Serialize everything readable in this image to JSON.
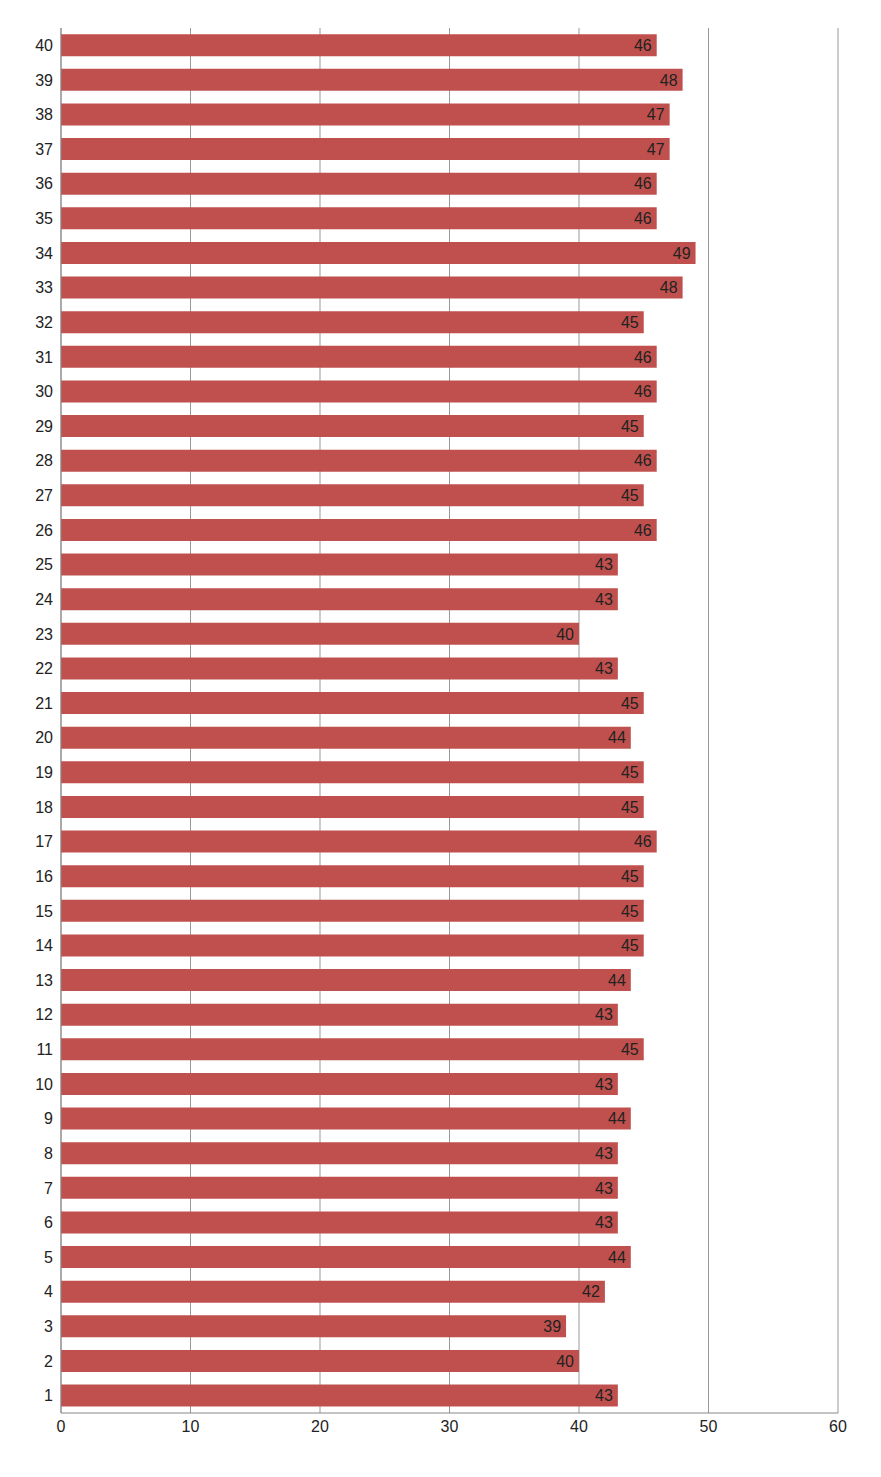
{
  "chart_data": {
    "type": "bar",
    "orientation": "horizontal",
    "categories": [
      "1",
      "2",
      "3",
      "4",
      "5",
      "6",
      "7",
      "8",
      "9",
      "10",
      "11",
      "12",
      "13",
      "14",
      "15",
      "16",
      "17",
      "18",
      "19",
      "20",
      "21",
      "22",
      "23",
      "24",
      "25",
      "26",
      "27",
      "28",
      "29",
      "30",
      "31",
      "32",
      "33",
      "34",
      "35",
      "36",
      "37",
      "38",
      "39",
      "40"
    ],
    "values": [
      43,
      40,
      39,
      42,
      44,
      43,
      43,
      43,
      44,
      43,
      45,
      43,
      44,
      45,
      45,
      45,
      46,
      45,
      45,
      44,
      45,
      43,
      40,
      43,
      43,
      46,
      45,
      46,
      45,
      46,
      46,
      45,
      48,
      49,
      46,
      46,
      47,
      47,
      48,
      46
    ],
    "color": "#c0504d",
    "xlim": [
      0,
      60
    ],
    "xticks": [
      0,
      10,
      20,
      30,
      40,
      50,
      60
    ],
    "grid": true,
    "data_labels": true
  }
}
